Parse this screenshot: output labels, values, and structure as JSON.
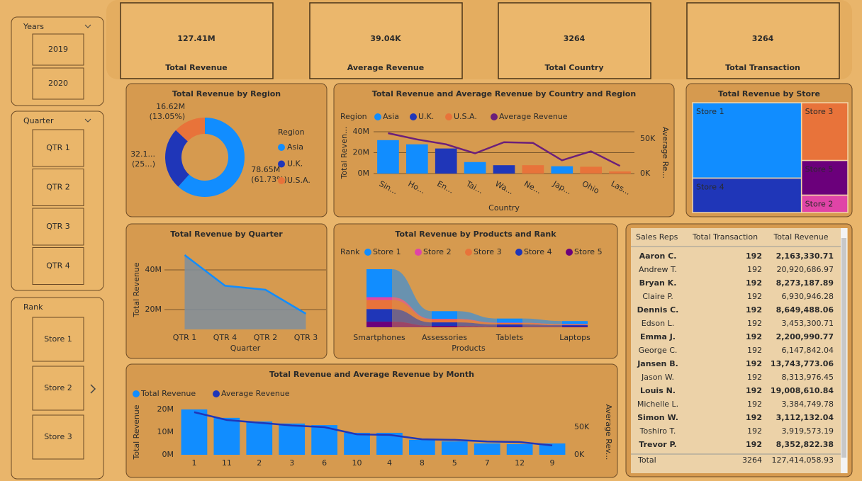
{
  "slicers": [
    {
      "title": "Years",
      "items": [
        "2019",
        "2020"
      ]
    },
    {
      "title": "Quarter",
      "items": [
        "QTR 1",
        "QTR 2",
        "QTR 3",
        "QTR 4"
      ]
    },
    {
      "title": "Rank",
      "items": [
        "Store 1",
        "Store 2",
        "Store 3"
      ]
    }
  ],
  "cards": [
    {
      "value": "127.41M",
      "label": "Total Revenue"
    },
    {
      "value": "39.04K",
      "label": "Average Revenue"
    },
    {
      "value": "3264",
      "label": "Total Country"
    },
    {
      "value": "3264",
      "label": "Total Transaction"
    }
  ],
  "chart_data": [
    {
      "type": "pie",
      "title": "Total Revenue by Region",
      "legend_title": "Region",
      "categories": [
        "Asia",
        "U.K.",
        "U.S.A."
      ],
      "values": [
        78.65,
        32.14,
        16.62
      ],
      "value_labels": [
        "78.65M\n(61.73%)",
        "32.1...\n(25...)",
        "16.62M\n(13.05%)"
      ],
      "colors": [
        "#118dff",
        "#1f36b8",
        "#e8733a"
      ]
    },
    {
      "type": "combo",
      "title": "Total Revenue and Average Revenue by Country and Region",
      "legend_title": "Region",
      "x_label": "Country",
      "y_label": "Total Reven...",
      "y2_label": "Average Re...",
      "categories": [
        "Sin...",
        "Ho...",
        "En...",
        "Tai...",
        "Wa...",
        "Ne...",
        "Jap...",
        "Ohio",
        "Las..."
      ],
      "series": [
        {
          "name": "Asia",
          "color": "#118dff",
          "values": [
            32,
            28,
            null,
            11,
            null,
            null,
            7,
            null,
            null
          ]
        },
        {
          "name": "U.K.",
          "color": "#1f36b8",
          "values": [
            null,
            null,
            24,
            null,
            8,
            null,
            null,
            null,
            null
          ]
        },
        {
          "name": "U.S.A.",
          "color": "#e8733a",
          "values": [
            null,
            null,
            null,
            null,
            null,
            8,
            null,
            6.5,
            2
          ]
        },
        {
          "name": "Average Revenue",
          "color": "#6b1f7a",
          "axis": "y2",
          "values": [
            58,
            49,
            42,
            29,
            45,
            44,
            19,
            32,
            11
          ]
        }
      ],
      "ylim": [
        0,
        40
      ],
      "yticks": [
        {
          "value": 0,
          "label": "0M"
        },
        {
          "value": 20,
          "label": "20M"
        },
        {
          "value": 40,
          "label": "40M"
        }
      ],
      "y2lim": [
        0,
        60
      ],
      "y2ticks": [
        {
          "value": 0,
          "label": "0K"
        },
        {
          "value": 50,
          "label": "50K"
        }
      ],
      "grid": true
    },
    {
      "type": "area",
      "title": "Total Revenue by Quarter",
      "x_label": "Quarter",
      "y_label": "Total Revenue",
      "categories": [
        "QTR 1",
        "QTR 4",
        "QTR 2",
        "QTR 3"
      ],
      "values": [
        47.5,
        32,
        30,
        17.9
      ],
      "color": "#118dff",
      "fill": "#7f8e9c",
      "ylim": [
        10,
        50
      ],
      "yticks": [
        {
          "value": 20,
          "label": "20M"
        },
        {
          "value": 40,
          "label": "40M"
        }
      ],
      "grid": true
    },
    {
      "type": "ribbon",
      "title": "Total Revenue by Products and Rank",
      "legend_title": "Rank",
      "x_label": "Products",
      "categories": [
        "Smartphones",
        "Assessories",
        "Tablets",
        "Laptops"
      ],
      "series": [
        {
          "name": "Store 1",
          "color": "#118dff",
          "values": [
            40,
            11,
            6,
            4.4
          ]
        },
        {
          "name": "Store 2",
          "color": "#e044a7",
          "values": [
            4,
            1,
            0.5,
            0.5
          ]
        },
        {
          "name": "Store 3",
          "color": "#e8733a",
          "values": [
            13,
            4,
            2,
            1
          ]
        },
        {
          "name": "Store 4",
          "color": "#1f36b8",
          "values": [
            18,
            5,
            3,
            2
          ]
        },
        {
          "name": "Store 5",
          "color": "#6b007b",
          "values": [
            8,
            2,
            1,
            1
          ]
        }
      ]
    },
    {
      "type": "treemap",
      "title": "Total Revenue by Store",
      "categories": [
        "Store 1",
        "Store 4",
        "Store 3",
        "Store 5",
        "Store 2"
      ],
      "values": [
        61.4,
        28,
        20,
        12,
        6
      ],
      "colors": [
        "#118dff",
        "#1f36b8",
        "#e8733a",
        "#6b007b",
        "#e044a7"
      ]
    },
    {
      "type": "combo",
      "title": "Total Revenue and Average Revenue by Month",
      "y_label": "Total Revenue",
      "y2_label": "Average Rev...",
      "categories": [
        "1",
        "11",
        "2",
        "3",
        "6",
        "10",
        "4",
        "8",
        "5",
        "7",
        "12",
        "9"
      ],
      "series": [
        {
          "name": "Total Revenue",
          "color": "#118dff",
          "values": [
            20,
            16.3,
            14.7,
            13.8,
            13.1,
            9.7,
            9.7,
            6.6,
            5.9,
            5,
            4.7,
            5
          ]
        },
        {
          "name": "Average Revenue",
          "color": "#1f36b8",
          "axis": "y2",
          "values": [
            77,
            63,
            58,
            53,
            50,
            37,
            36,
            28,
            27,
            24,
            23,
            17
          ]
        }
      ],
      "ylim": [
        0,
        20
      ],
      "yticks": [
        {
          "value": 0,
          "label": "0M"
        },
        {
          "value": 10,
          "label": "10M"
        },
        {
          "value": 20,
          "label": "20M"
        }
      ],
      "y2lim": [
        0,
        82
      ],
      "y2ticks": [
        {
          "value": 0,
          "label": "0K"
        },
        {
          "value": 50,
          "label": "50K"
        }
      ],
      "grid": false
    }
  ],
  "table": {
    "columns": [
      "Sales Reps",
      "Total Transaction",
      "Total Revenue"
    ],
    "rows": [
      [
        "Aaron C.",
        "192",
        "2,163,330.71"
      ],
      [
        "Andrew T.",
        "192",
        "20,920,686.97"
      ],
      [
        "Bryan K.",
        "192",
        "8,273,187.89"
      ],
      [
        "Claire P.",
        "192",
        "6,930,946.28"
      ],
      [
        "Dennis C.",
        "192",
        "8,649,488.06"
      ],
      [
        "Edson L.",
        "192",
        "3,453,300.71"
      ],
      [
        "Emma J.",
        "192",
        "2,200,990.77"
      ],
      [
        "George C.",
        "192",
        "6,147,842.04"
      ],
      [
        "Jansen B.",
        "192",
        "13,743,773.06"
      ],
      [
        "Jason W.",
        "192",
        "8,313,976.45"
      ],
      [
        "Louis N.",
        "192",
        "19,008,610.84"
      ],
      [
        "Michelle L.",
        "192",
        "3,384,749.78"
      ],
      [
        "Simon W.",
        "192",
        "3,112,132.04"
      ],
      [
        "Toshiro T.",
        "192",
        "3,919,573.19"
      ],
      [
        "Trevor P.",
        "192",
        "8,352,822.38"
      ]
    ],
    "total": [
      "Total",
      "3264",
      "127,414,058.93"
    ]
  }
}
